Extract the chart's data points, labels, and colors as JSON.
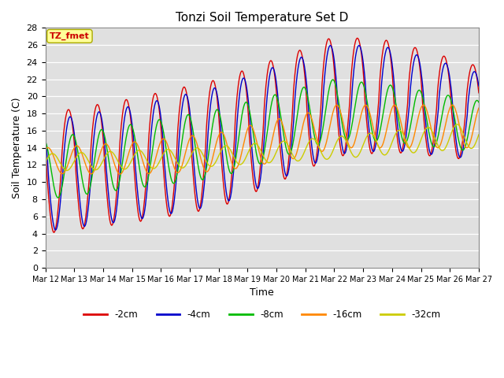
{
  "title": "Tonzi Soil Temperature Set D",
  "xlabel": "Time",
  "ylabel": "Soil Temperature (C)",
  "ylim": [
    0,
    28
  ],
  "yticks": [
    0,
    2,
    4,
    6,
    8,
    10,
    12,
    14,
    16,
    18,
    20,
    22,
    24,
    26,
    28
  ],
  "series_colors": [
    "#dd0000",
    "#0000cc",
    "#00bb00",
    "#ff8800",
    "#cccc00"
  ],
  "series_labels": [
    "-2cm",
    "-4cm",
    "-8cm",
    "-16cm",
    "-32cm"
  ],
  "annotation_text": "TZ_fmet",
  "annotation_color": "#cc0000",
  "annotation_bg": "#ffff99",
  "bg_color": "#e0e0e0",
  "x_start_day": 12,
  "x_end_day": 27,
  "x_tick_days": [
    12,
    13,
    14,
    15,
    16,
    17,
    18,
    19,
    20,
    21,
    22,
    23,
    24,
    25,
    26,
    27
  ]
}
